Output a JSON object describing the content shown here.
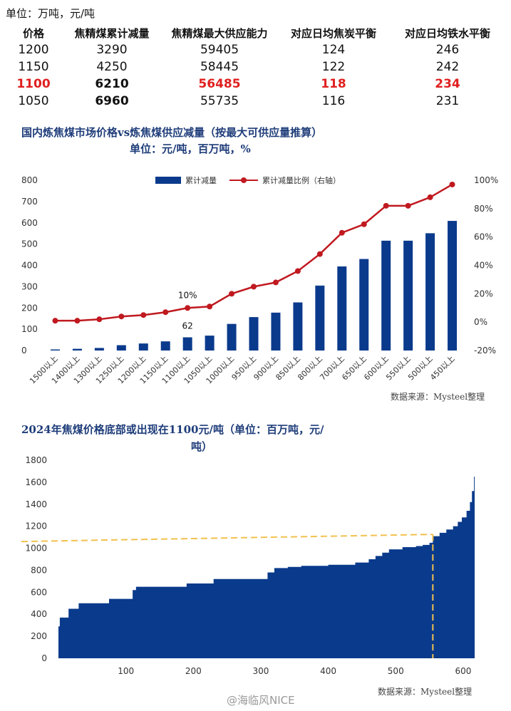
{
  "table": {
    "unit": "单位：万吨，元/吨",
    "headers": [
      "价格",
      "焦精煤累计减量",
      "焦精煤最大供应能力",
      "对应日均焦炭平衡",
      "对应日均铁水平衡"
    ],
    "rows": [
      [
        "1200",
        "3290",
        "59405",
        "124",
        "246"
      ],
      [
        "1150",
        "4250",
        "58445",
        "122",
        "242"
      ],
      [
        "1100",
        "6210",
        "56485",
        "118",
        "234"
      ],
      [
        "1050",
        "6960",
        "55735",
        "116",
        "231"
      ]
    ],
    "highlight_row": 2
  },
  "chart_data": [
    {
      "type": "bar",
      "title": "国内炼焦煤市场价格vs炼焦煤供应减量（按最大可供应量推算）",
      "subtitle": "单位：元/吨，百万吨，%",
      "categories": [
        "1500以上",
        "1400以上",
        "1300以上",
        "1250以上",
        "1200以上",
        "1150以上",
        "1100以上",
        "1050以上",
        "1000以上",
        "950以上",
        "900以上",
        "850以上",
        "800以上",
        "700以上",
        "650以上",
        "600以上",
        "550以上",
        "500以上",
        "450以上"
      ],
      "series": [
        {
          "name": "累计减量",
          "type": "bar",
          "axis": "left",
          "color": "#0a3a8c",
          "values": [
            5,
            8,
            12,
            25,
            33,
            43,
            62,
            70,
            125,
            157,
            178,
            226,
            305,
            395,
            430,
            516,
            516,
            551,
            609
          ]
        },
        {
          "name": "累计减量比例（右轴）",
          "type": "line",
          "axis": "right",
          "color": "#c0191f",
          "values": [
            1,
            1,
            2,
            4,
            5,
            7,
            10,
            11,
            20,
            25,
            28,
            36,
            48,
            63,
            69,
            82,
            82,
            88,
            97
          ]
        }
      ],
      "ylim_left": [
        0,
        800
      ],
      "yticks_left": [
        "0",
        "100",
        "200",
        "300",
        "400",
        "500",
        "600",
        "700",
        "800"
      ],
      "ylim_right": [
        -20,
        100
      ],
      "yticks_right": [
        "-20%",
        "0%",
        "20%",
        "40%",
        "60%",
        "80%",
        "100%"
      ],
      "annotations": [
        {
          "text": "10%",
          "index": 6,
          "series": 1
        },
        {
          "text": "62",
          "index": 6,
          "series": 0
        }
      ],
      "legend": "top-center",
      "grid": false,
      "source": "数据来源：Mysteel整理"
    },
    {
      "type": "area",
      "title": "2024年焦煤价格底部或出现在1100元/吨（单位：百万吨，元/",
      "title_line2": "吨）",
      "x_max": 617,
      "xticks": [
        "100",
        "200",
        "300",
        "400",
        "500",
        "600"
      ],
      "ylim": [
        0,
        1800
      ],
      "yticks": [
        "0",
        "200",
        "400",
        "600",
        "800",
        "1000",
        "1200",
        "1400",
        "1600",
        "1800"
      ],
      "steps": [
        [
          0,
          290
        ],
        [
          2,
          370
        ],
        [
          15,
          450
        ],
        [
          30,
          500
        ],
        [
          75,
          540
        ],
        [
          110,
          620
        ],
        [
          115,
          650
        ],
        [
          190,
          680
        ],
        [
          230,
          720
        ],
        [
          310,
          780
        ],
        [
          320,
          820
        ],
        [
          340,
          830
        ],
        [
          360,
          840
        ],
        [
          400,
          850
        ],
        [
          440,
          870
        ],
        [
          460,
          900
        ],
        [
          470,
          930
        ],
        [
          480,
          960
        ],
        [
          490,
          990
        ],
        [
          510,
          1010
        ],
        [
          530,
          1020
        ],
        [
          540,
          1030
        ],
        [
          550,
          1050
        ],
        [
          555,
          1110
        ],
        [
          565,
          1140
        ],
        [
          575,
          1170
        ],
        [
          585,
          1200
        ],
        [
          592,
          1240
        ],
        [
          598,
          1280
        ],
        [
          605,
          1340
        ],
        [
          610,
          1420
        ],
        [
          613,
          1520
        ],
        [
          616,
          1650
        ],
        [
          617,
          1700
        ]
      ],
      "reference_y": 1100,
      "reference_x": 555,
      "color": "#0a3a8c",
      "reference_color": "#f2c14e",
      "source": "数据来源：Mysteel整理"
    }
  ],
  "watermark": "@海临风NICE"
}
